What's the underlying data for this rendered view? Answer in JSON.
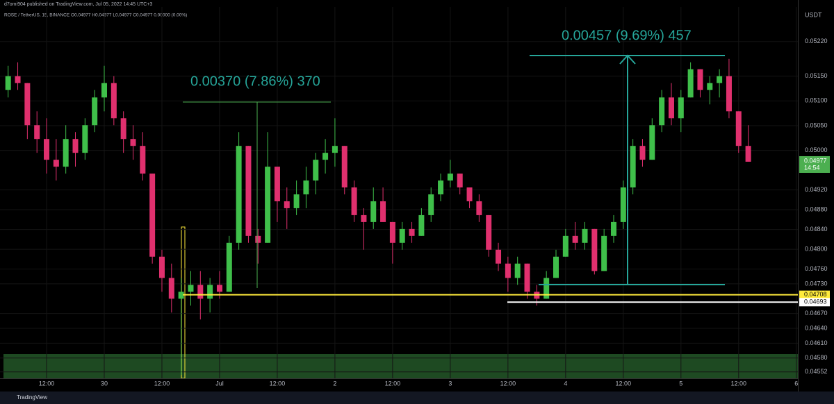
{
  "header": "d7omi904 published on TradingView.com, Jul 05, 2022 14:45 UTC+3",
  "legend": "ROSE / TetherUS, 15, BINANCE  O0.04977 H0.04977 L0.04977 C0.04977 0.00000 (0.00%)",
  "currency": "USDT",
  "footer": "TradingView",
  "chart_data": {
    "type": "candlestick",
    "categories": [
      null,
      null,
      null,
      null,
      "12:00",
      null,
      null,
      null,
      null,
      null,
      "30",
      null,
      null,
      null,
      null,
      null,
      "12:00",
      null,
      null,
      null,
      null,
      null,
      "Jul",
      null,
      null,
      null,
      null,
      null,
      "12:00",
      null,
      null,
      null,
      null,
      null,
      "2",
      null,
      null,
      null,
      null,
      null,
      "12:00",
      null,
      null,
      null,
      null,
      null,
      "3",
      null,
      null,
      null,
      null,
      null,
      "12:00",
      null,
      null,
      null,
      null,
      null,
      "4",
      null,
      null,
      null,
      null,
      null,
      "12:00",
      null,
      null,
      null,
      null,
      null,
      "5",
      null,
      null,
      null,
      null,
      null,
      "12:00",
      null,
      null,
      null,
      null,
      null,
      "6"
    ],
    "open": [
      0.05122,
      0.0515,
      0.05136,
      0.05051,
      0.05023,
      0.04981,
      0.04967,
      0.05023,
      0.04995,
      0.05051,
      0.05107,
      0.05136,
      0.05065,
      0.05023,
      0.05009,
      0.04953,
      0.04785,
      0.04742,
      0.047,
      0.04714,
      0.04728,
      0.047,
      0.04728,
      0.04714,
      0.04813,
      0.05009,
      0.04827,
      0.04813,
      0.04967,
      0.04897,
      0.04883,
      0.04911,
      0.04939,
      0.04981,
      0.04995,
      0.05009,
      0.04925,
      0.04869,
      0.04855,
      0.04897,
      0.04855,
      0.04813,
      0.04841,
      0.04827,
      0.04869,
      0.04911,
      0.04939,
      0.04953,
      0.04925,
      0.04897,
      0.04869,
      0.04799,
      0.04771,
      0.04742,
      0.04771,
      0.04714,
      0.047,
      0.04742,
      0.04785,
      0.04827,
      0.04813,
      0.04841,
      0.04756,
      0.04827,
      0.04855,
      0.04925,
      0.05009,
      0.04981,
      0.05051,
      0.05107,
      0.05065,
      0.05107,
      0.05164,
      0.05122,
      0.05136,
      0.0515,
      0.05079,
      0.05009,
      null,
      null,
      null,
      null,
      null
    ],
    "high": [
      0.05171,
      0.05178,
      0.05136,
      0.05079,
      0.05065,
      0.05023,
      0.05051,
      0.05037,
      0.05065,
      0.05122,
      0.05171,
      0.0515,
      0.05079,
      0.05051,
      0.05037,
      0.04953,
      0.04799,
      0.04771,
      0.04742,
      0.04756,
      0.04756,
      0.04742,
      0.04756,
      0.04827,
      0.05037,
      0.05009,
      0.04841,
      0.05037,
      0.04967,
      0.04925,
      0.04939,
      0.04967,
      0.04995,
      0.05023,
      0.05065,
      0.05009,
      0.04939,
      0.04883,
      0.04925,
      0.04925,
      0.04855,
      0.04855,
      0.04855,
      0.04883,
      0.04925,
      0.04953,
      0.04981,
      0.04953,
      0.04925,
      0.04911,
      0.04869,
      0.04813,
      0.04785,
      0.04785,
      0.04771,
      0.04728,
      0.04756,
      0.04799,
      0.04841,
      0.04855,
      0.04855,
      0.04841,
      0.04841,
      0.04869,
      0.04939,
      0.05023,
      0.05023,
      0.05065,
      0.05122,
      0.05136,
      0.05122,
      0.05178,
      0.05164,
      0.0515,
      0.05164,
      0.05185,
      0.05079,
      0.05051,
      null,
      null,
      null,
      null,
      null
    ],
    "low": [
      0.05107,
      0.05122,
      0.05023,
      0.04995,
      0.04953,
      0.04939,
      0.04953,
      0.04967,
      0.04981,
      0.05037,
      0.05079,
      0.05051,
      0.04995,
      0.04981,
      0.04939,
      0.04771,
      0.04714,
      0.04672,
      0.04546,
      0.04686,
      0.04658,
      0.04672,
      0.047,
      0.04714,
      0.04799,
      0.04813,
      0.04771,
      0.04813,
      0.04855,
      0.04841,
      0.04869,
      0.04883,
      0.04911,
      0.04953,
      0.04967,
      0.04911,
      0.04855,
      0.04799,
      0.04841,
      0.04855,
      0.04771,
      0.04799,
      0.04813,
      0.04827,
      0.04855,
      0.04897,
      0.04925,
      0.04911,
      0.04883,
      0.04855,
      0.04785,
      0.04756,
      0.04714,
      0.04728,
      0.047,
      0.04686,
      0.047,
      0.04742,
      0.04785,
      0.04799,
      0.04799,
      0.04749,
      0.04756,
      0.04813,
      0.04841,
      0.04911,
      0.04967,
      0.04981,
      0.05037,
      0.05051,
      0.05037,
      0.05107,
      0.05107,
      0.05093,
      0.05107,
      0.05065,
      0.04995,
      0.04977,
      null,
      null,
      null,
      null,
      null
    ],
    "close": [
      0.0515,
      0.05136,
      0.05051,
      0.05023,
      0.04981,
      0.04967,
      0.05023,
      0.04995,
      0.05051,
      0.05107,
      0.05136,
      0.05065,
      0.05023,
      0.05009,
      0.04953,
      0.04785,
      0.04742,
      0.047,
      0.04714,
      0.04728,
      0.047,
      0.04728,
      0.04714,
      0.04813,
      0.05009,
      0.04827,
      0.04813,
      0.04967,
      0.04897,
      0.04883,
      0.04911,
      0.04939,
      0.04981,
      0.04995,
      0.05009,
      0.04925,
      0.04869,
      0.04855,
      0.04897,
      0.04855,
      0.04813,
      0.04841,
      0.04827,
      0.04869,
      0.04911,
      0.04939,
      0.04953,
      0.04925,
      0.04897,
      0.04869,
      0.04799,
      0.04771,
      0.04742,
      0.04771,
      0.04714,
      0.047,
      0.04742,
      0.04785,
      0.04827,
      0.04813,
      0.04841,
      0.04756,
      0.04827,
      0.04855,
      0.04925,
      0.05009,
      0.04981,
      0.05051,
      0.05107,
      0.05065,
      0.05107,
      0.05164,
      0.05122,
      0.05136,
      0.0515,
      0.05079,
      0.05009,
      0.04977,
      null,
      null,
      null,
      null,
      null
    ],
    "up_color": "#3fbf4a",
    "down_color": "#e0306e",
    "ylim": [
      0.04539,
      0.0529
    ],
    "yticks": [
      {
        "value": 0.0522,
        "label": "0.05220"
      },
      {
        "value": 0.0515,
        "label": "0.05150"
      },
      {
        "value": 0.051,
        "label": "0.05100"
      },
      {
        "value": 0.0505,
        "label": "0.05050"
      },
      {
        "value": 0.05,
        "label": "0.05000"
      },
      {
        "value": 0.0492,
        "label": "0.04920"
      },
      {
        "value": 0.0488,
        "label": "0.04880"
      },
      {
        "value": 0.0484,
        "label": "0.04840"
      },
      {
        "value": 0.048,
        "label": "0.04800"
      },
      {
        "value": 0.0476,
        "label": "0.04760"
      },
      {
        "value": 0.0473,
        "label": "0.04730"
      },
      {
        "value": 0.0467,
        "label": "0.04670"
      },
      {
        "value": 0.0464,
        "label": "0.04640"
      },
      {
        "value": 0.0461,
        "label": "0.04610"
      },
      {
        "value": 0.0458,
        "label": "0.04580"
      },
      {
        "value": 0.04552,
        "label": "0.04552"
      }
    ],
    "grid": true,
    "last_price": {
      "value": 0.04977,
      "label": "0.04977",
      "countdown": "14:54",
      "color": "#4caf50"
    },
    "levels": [
      {
        "value": 0.04708,
        "label": "0.04708",
        "color": "#ffeb3b"
      },
      {
        "value": 0.04693,
        "label": "0.04693",
        "color": "#ffffff"
      }
    ],
    "annotations": [
      "0.00370 (7.86%) 370",
      "0.00457 (9.69%) 457"
    ]
  }
}
